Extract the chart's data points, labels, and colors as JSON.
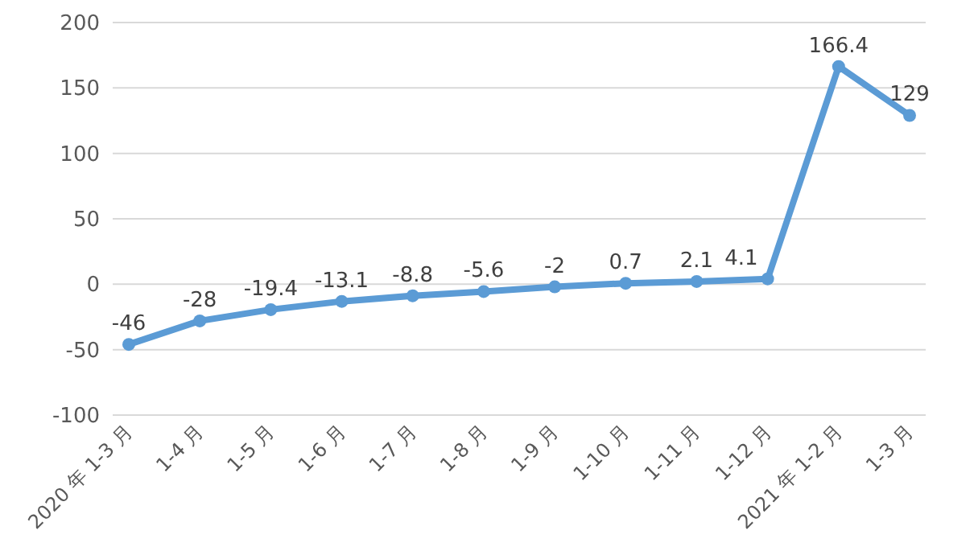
{
  "chart_data": {
    "type": "line",
    "categories": [
      "2020 年 1-3 月",
      "1-4 月",
      "1-5 月",
      "1-6 月",
      "1-7 月",
      "1-8 月",
      "1-9 月",
      "1-10 月",
      "1-11 月",
      "1-12 月",
      "2021 年 1-2 月",
      "1-3 月"
    ],
    "series": [
      {
        "color": "#5b9bd5",
        "values": [
          -46,
          -28,
          -19.4,
          -13.1,
          -8.8,
          -5.6,
          -2,
          0.7,
          2.1,
          4.1,
          166.4,
          129
        ]
      }
    ],
    "ylim": [
      -100,
      200
    ],
    "yticks": [
      -100,
      -50,
      0,
      50,
      100,
      150,
      200
    ],
    "grid": "y",
    "marker": "circle",
    "data_labels": true
  }
}
